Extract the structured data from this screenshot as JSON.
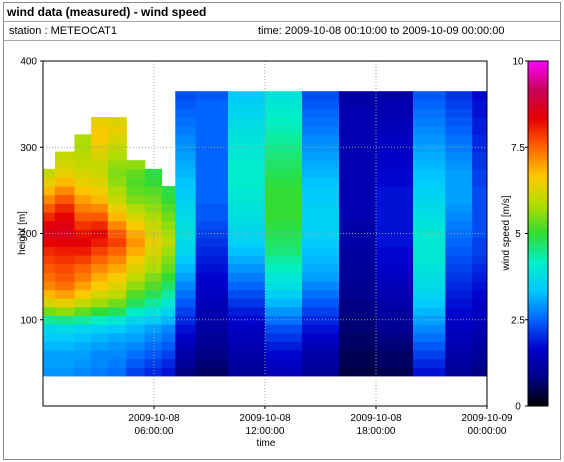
{
  "header": {
    "title": "wind data (measured) - wind speed",
    "station": "station : METEOCAT1",
    "time_range": "time: 2009-10-08 00:10:00 to 2009-10-09 00:00:00"
  },
  "chart_data": {
    "type": "heatmap",
    "xlabel": "time",
    "ylabel": "height [m]",
    "colorbar_label": "wind speed [m/s]",
    "xlim": [
      0,
      24
    ],
    "ylim": [
      0,
      400
    ],
    "zlim": [
      0,
      10
    ],
    "x_ticks": [
      {
        "value": 6,
        "date": "2009-10-08",
        "time": "06:00:00"
      },
      {
        "value": 12,
        "date": "2009-10-08",
        "time": "12:00:00"
      },
      {
        "value": 18,
        "date": "2009-10-08",
        "time": "18:00:00"
      },
      {
        "value": 24,
        "date": "2009-10-09",
        "time": "00:00:00"
      }
    ],
    "y_ticks": [
      100,
      200,
      300,
      400
    ],
    "colorbar_ticks": [
      "0",
      "2.5",
      "5",
      "7.5",
      "10"
    ],
    "colormap": [
      "#000000",
      "#00008b",
      "#0000cd",
      "#0064ff",
      "#00c8ff",
      "#00f0c8",
      "#32dc32",
      "#b4dc00",
      "#ffc800",
      "#ff6400",
      "#e60000",
      "#c8005a",
      "#ff00ff"
    ],
    "grid": true,
    "height_levels": [
      40,
      50,
      60,
      70,
      80,
      90,
      100,
      110,
      120,
      130,
      140,
      150,
      160,
      170,
      180,
      190,
      200,
      210,
      220,
      230,
      240,
      250,
      260,
      270,
      280,
      290,
      300,
      310,
      320,
      330,
      340,
      350,
      360
    ],
    "speed_profiles": [
      {
        "time": 0.1,
        "speeds": [
          2.9,
          3.0,
          3.0,
          3.2,
          3.4,
          3.6,
          4.4,
          5.4,
          6.2,
          6.8,
          7.2,
          7.4,
          7.6,
          7.8,
          8.0,
          8.3,
          8.6,
          8.4,
          8.0,
          7.6,
          7.2,
          6.8,
          6.4,
          6.0
        ]
      },
      {
        "time": 1.2,
        "speeds": [
          2.9,
          3.0,
          3.0,
          3.2,
          3.4,
          3.7,
          4.5,
          5.6,
          6.4,
          7.0,
          7.4,
          7.6,
          7.7,
          7.9,
          8.1,
          8.4,
          8.6,
          8.5,
          8.3,
          8.0,
          7.6,
          7.2,
          6.8,
          6.4,
          6.2,
          6.0
        ]
      },
      {
        "time": 2.2,
        "speeds": [
          2.8,
          2.9,
          3.0,
          3.1,
          3.3,
          3.6,
          4.4,
          5.3,
          6.0,
          6.6,
          7.0,
          7.3,
          7.5,
          7.8,
          8.1,
          8.4,
          8.2,
          7.9,
          7.6,
          7.3,
          7.0,
          6.7,
          6.4,
          6.2,
          6.0,
          5.9,
          5.8,
          5.8
        ]
      },
      {
        "time": 3.0,
        "speeds": [
          2.7,
          2.8,
          2.8,
          3.0,
          3.2,
          3.5,
          4.2,
          5.0,
          5.7,
          6.2,
          6.6,
          6.9,
          7.2,
          7.5,
          7.8,
          8.1,
          8.3,
          8.0,
          7.6,
          7.2,
          6.8,
          6.5,
          6.3,
          6.1,
          6.0,
          6.2,
          6.4,
          6.6,
          6.6,
          6.4
        ]
      },
      {
        "time": 4.0,
        "speeds": [
          2.6,
          2.7,
          2.8,
          2.9,
          3.1,
          3.4,
          4.0,
          4.8,
          5.4,
          5.9,
          6.3,
          6.6,
          6.9,
          7.2,
          7.5,
          7.8,
          7.6,
          7.2,
          6.8,
          6.4,
          6.0,
          5.8,
          5.6,
          5.5,
          5.6,
          5.8,
          6.0,
          6.2,
          6.4,
          6.3
        ]
      },
      {
        "time": 5.0,
        "speeds": [
          2.2,
          2.4,
          2.6,
          2.8,
          3.0,
          3.2,
          3.6,
          4.2,
          4.8,
          5.2,
          5.6,
          6.0,
          6.3,
          6.6,
          6.9,
          7.1,
          6.9,
          6.6,
          6.2,
          5.8,
          5.5,
          5.3,
          5.2,
          5.3,
          5.6
        ]
      },
      {
        "time": 6.0,
        "speeds": [
          2.0,
          2.2,
          2.4,
          2.6,
          2.8,
          3.0,
          3.4,
          3.9,
          4.4,
          4.8,
          5.2,
          5.5,
          5.8,
          6.0,
          6.2,
          6.4,
          6.2,
          6.0,
          5.8,
          5.6,
          5.4,
          5.2,
          5.0,
          4.9
        ]
      },
      {
        "time": 6.8,
        "speeds": [
          1.8,
          2.0,
          2.2,
          2.4,
          2.6,
          2.8,
          3.2,
          3.6,
          4.0,
          4.4,
          4.7,
          5.0,
          5.3,
          5.5,
          5.7,
          5.9,
          5.8,
          5.6,
          5.4,
          5.2,
          5.0,
          4.9
        ]
      },
      {
        "time": 7.5,
        "speeds": [
          0.8,
          1.0,
          1.2,
          1.4,
          1.6,
          1.8,
          2.0,
          2.2,
          2.4,
          2.6,
          2.8,
          3.0,
          3.2,
          3.4,
          3.6,
          3.7,
          3.8,
          3.8,
          3.7,
          3.6,
          3.5,
          3.4,
          3.3,
          3.2,
          3.1,
          3.0,
          2.9,
          2.8,
          2.7,
          2.6,
          2.5,
          2.4,
          2.3
        ]
      },
      {
        "time": 9.0,
        "speeds": [
          0.6,
          0.7,
          0.8,
          0.9,
          1.0,
          1.1,
          1.2,
          1.3,
          1.4,
          1.5,
          1.6,
          1.7,
          1.8,
          1.9,
          2.0,
          2.1,
          2.2,
          2.3,
          2.4,
          2.4,
          2.5,
          2.5,
          2.5,
          2.5,
          2.5,
          2.5,
          2.5,
          2.5,
          2.5,
          2.5,
          2.5,
          2.5,
          2.4
        ]
      },
      {
        "time": 11.0,
        "speeds": [
          1.0,
          1.1,
          1.2,
          1.3,
          1.4,
          1.5,
          1.7,
          1.9,
          2.1,
          2.3,
          2.5,
          2.7,
          2.9,
          3.1,
          3.3,
          3.5,
          3.6,
          3.7,
          3.8,
          3.9,
          4.0,
          4.0,
          4.1,
          4.1,
          4.1,
          4.0,
          4.0,
          3.9,
          3.8,
          3.7,
          3.6,
          3.5,
          3.4
        ]
      },
      {
        "time": 13.0,
        "speeds": [
          1.4,
          1.5,
          1.7,
          1.9,
          2.1,
          2.3,
          2.6,
          2.9,
          3.2,
          3.5,
          3.8,
          4.0,
          4.2,
          4.4,
          4.6,
          4.7,
          4.8,
          4.9,
          5.0,
          5.0,
          5.0,
          5.0,
          4.9,
          4.8,
          4.7,
          4.6,
          4.5,
          4.4,
          4.3,
          4.2,
          4.1,
          4.0,
          3.9
        ]
      },
      {
        "time": 15.0,
        "speeds": [
          1.0,
          1.1,
          1.2,
          1.4,
          1.6,
          1.8,
          2.0,
          2.2,
          2.4,
          2.6,
          2.8,
          3.0,
          3.1,
          3.2,
          3.3,
          3.4,
          3.5,
          3.5,
          3.5,
          3.5,
          3.4,
          3.4,
          3.3,
          3.2,
          3.1,
          3.0,
          2.9,
          2.8,
          2.7,
          2.6,
          2.5,
          2.4,
          2.3
        ]
      },
      {
        "time": 17.0,
        "speeds": [
          0.4,
          0.5,
          0.5,
          0.6,
          0.6,
          0.7,
          0.7,
          0.8,
          0.8,
          0.9,
          0.9,
          1.0,
          1.0,
          1.1,
          1.1,
          1.2,
          1.2,
          1.2,
          1.3,
          1.3,
          1.3,
          1.3,
          1.3,
          1.3,
          1.3,
          1.3,
          1.3,
          1.3,
          1.3,
          1.3,
          1.3,
          1.2,
          1.2
        ]
      },
      {
        "time": 19.0,
        "speeds": [
          0.5,
          0.6,
          0.6,
          0.7,
          0.8,
          0.9,
          1.0,
          1.1,
          1.2,
          1.3,
          1.4,
          1.5,
          1.6,
          1.7,
          1.7,
          1.8,
          1.8,
          1.8,
          1.8,
          1.8,
          1.8,
          1.8,
          1.7,
          1.7,
          1.6,
          1.6,
          1.5,
          1.5,
          1.4,
          1.4,
          1.3,
          1.3,
          1.2
        ]
      },
      {
        "time": 21.0,
        "speeds": [
          1.8,
          2.0,
          2.2,
          2.4,
          2.6,
          2.8,
          3.0,
          3.2,
          3.4,
          3.6,
          3.7,
          3.8,
          3.9,
          4.0,
          4.0,
          4.0,
          4.0,
          3.9,
          3.8,
          3.7,
          3.6,
          3.5,
          3.4,
          3.3,
          3.2,
          3.1,
          3.0,
          2.9,
          2.8,
          2.7,
          2.6,
          2.5,
          2.4
        ]
      },
      {
        "time": 22.5,
        "speeds": [
          1.0,
          1.1,
          1.2,
          1.3,
          1.4,
          1.5,
          1.6,
          1.7,
          1.8,
          1.9,
          2.0,
          2.1,
          2.2,
          2.3,
          2.4,
          2.5,
          2.6,
          2.7,
          2.8,
          2.9,
          3.0,
          3.0,
          3.0,
          3.0,
          2.9,
          2.8,
          2.7,
          2.6,
          2.5,
          2.4,
          2.3,
          2.2,
          2.1
        ]
      },
      {
        "time": 23.9,
        "speeds": [
          0.8,
          0.9,
          1.0,
          1.1,
          1.2,
          1.3,
          1.4,
          1.5,
          1.6,
          1.7,
          1.8,
          1.9,
          2.0,
          2.1,
          2.2,
          2.2,
          2.3,
          2.3,
          2.3,
          2.3,
          2.3,
          2.3,
          2.2,
          2.2,
          2.1,
          2.1,
          2.0,
          2.0,
          1.9,
          1.9,
          1.8,
          1.8,
          1.7
        ]
      }
    ]
  }
}
